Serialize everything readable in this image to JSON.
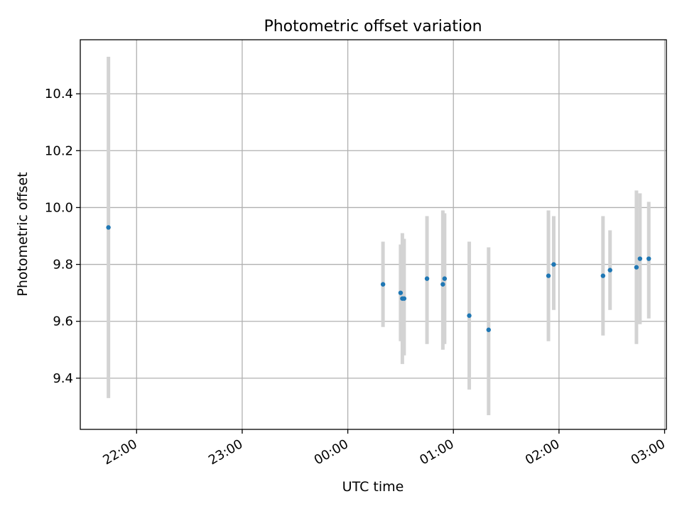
{
  "chart_data": {
    "type": "scatter",
    "title": "Photometric offset variation",
    "xlabel": "UTC time",
    "ylabel": "Photometric offset",
    "x_axis_kind": "time",
    "x_axis_reference": "21:00",
    "xlim": [
      "21:28",
      "03:01"
    ],
    "ylim": [
      9.22,
      10.59
    ],
    "grid": true,
    "x_ticks": [
      "22:00",
      "23:00",
      "00:00",
      "01:00",
      "02:00",
      "03:00"
    ],
    "y_ticks": [
      "9.4",
      "9.6",
      "9.8",
      "10.0",
      "10.2",
      "10.4"
    ],
    "y_tick_values": [
      9.4,
      9.6,
      9.8,
      10.0,
      10.2,
      10.4
    ],
    "series": [
      {
        "marker_color": "#1f77b4",
        "errorbar_color": "#d3d3d3",
        "points": [
          {
            "x": "21:44",
            "y": 9.93,
            "ymin": 9.33,
            "ymax": 10.53
          },
          {
            "x": "00:20",
            "y": 9.73,
            "ymin": 9.58,
            "ymax": 9.88
          },
          {
            "x": "00:30",
            "y": 9.7,
            "ymin": 9.53,
            "ymax": 9.87
          },
          {
            "x": "00:31",
            "y": 9.68,
            "ymin": 9.45,
            "ymax": 9.91
          },
          {
            "x": "00:32",
            "y": 9.68,
            "ymin": 9.48,
            "ymax": 9.89
          },
          {
            "x": "00:45",
            "y": 9.75,
            "ymin": 9.52,
            "ymax": 9.97
          },
          {
            "x": "00:54",
            "y": 9.73,
            "ymin": 9.5,
            "ymax": 9.99
          },
          {
            "x": "00:55",
            "y": 9.75,
            "ymin": 9.52,
            "ymax": 9.98
          },
          {
            "x": "01:09",
            "y": 9.62,
            "ymin": 9.36,
            "ymax": 9.88
          },
          {
            "x": "01:20",
            "y": 9.57,
            "ymin": 9.27,
            "ymax": 9.86
          },
          {
            "x": "01:54",
            "y": 9.76,
            "ymin": 9.53,
            "ymax": 9.99
          },
          {
            "x": "01:57",
            "y": 9.8,
            "ymin": 9.64,
            "ymax": 9.97
          },
          {
            "x": "02:25",
            "y": 9.76,
            "ymin": 9.55,
            "ymax": 9.97
          },
          {
            "x": "02:29",
            "y": 9.78,
            "ymin": 9.64,
            "ymax": 9.92
          },
          {
            "x": "02:44",
            "y": 9.79,
            "ymin": 9.52,
            "ymax": 10.06
          },
          {
            "x": "02:46",
            "y": 9.82,
            "ymin": 9.59,
            "ymax": 10.05
          },
          {
            "x": "02:51",
            "y": 9.82,
            "ymin": 9.61,
            "ymax": 10.02
          }
        ]
      }
    ]
  }
}
